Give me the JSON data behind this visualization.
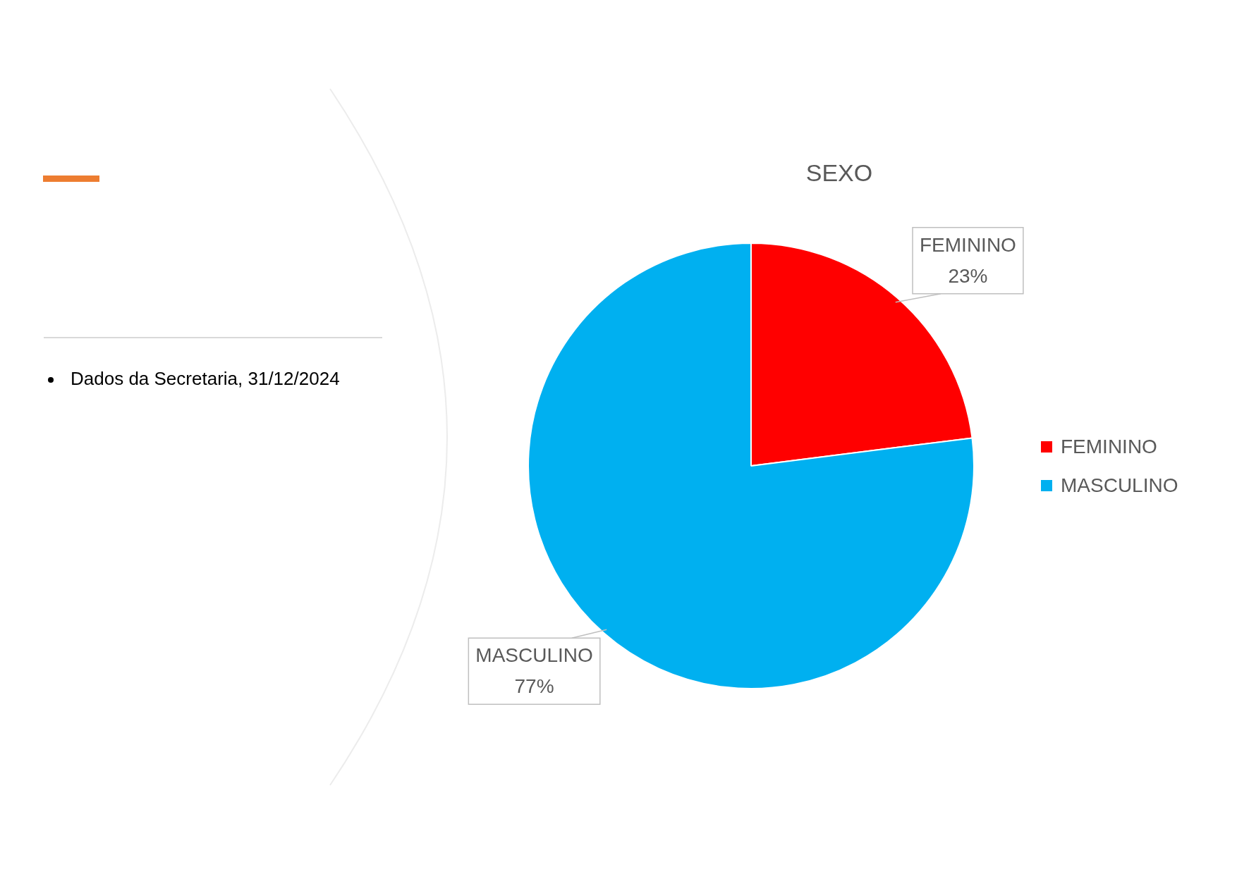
{
  "chart_data": {
    "type": "pie",
    "title": "SEXO",
    "categories": [
      "FEMININO",
      "MASCULINO"
    ],
    "values": [
      23,
      77
    ],
    "colors": [
      "#ff0000",
      "#00b0f0"
    ],
    "value_labels": [
      "23%",
      "77%"
    ],
    "legend": "right",
    "annotations": [
      "Dados da Secretaria, 31/12/2024"
    ]
  }
}
